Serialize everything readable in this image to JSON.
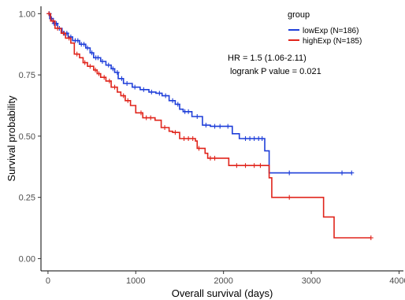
{
  "chart_data": {
    "type": "line",
    "xlabel": "Overall survival (days)",
    "ylabel": "Survival probability",
    "xlim": [
      -80,
      4050
    ],
    "ylim": [
      -0.05,
      1.03
    ],
    "x_ticks": [
      0,
      1000,
      2000,
      3000,
      4000
    ],
    "x_tick_labels": [
      "0",
      "1000",
      "2000",
      "3000",
      "4000"
    ],
    "y_ticks": [
      0,
      0.25,
      0.5,
      0.75,
      1
    ],
    "y_tick_labels": [
      "0.00",
      "0.25",
      "0.50",
      "0.75",
      "1.00"
    ],
    "grid": false,
    "legend": {
      "title": "group",
      "position": "top-right",
      "entries": [
        "lowExp (N=186)",
        "highExp  (N=185)"
      ]
    },
    "annotations": [
      "HR = 1.5 (1.06-2.11)",
      "logrank P value = 0.021"
    ],
    "series": [
      {
        "name": "lowExp (N=186)",
        "color": "#1f3fd9",
        "steps": [
          [
            0,
            1.0
          ],
          [
            20,
            0.98
          ],
          [
            60,
            0.96
          ],
          [
            110,
            0.94
          ],
          [
            160,
            0.92
          ],
          [
            230,
            0.905
          ],
          [
            280,
            0.89
          ],
          [
            360,
            0.875
          ],
          [
            430,
            0.86
          ],
          [
            480,
            0.84
          ],
          [
            520,
            0.82
          ],
          [
            600,
            0.805
          ],
          [
            660,
            0.79
          ],
          [
            720,
            0.775
          ],
          [
            760,
            0.76
          ],
          [
            800,
            0.735
          ],
          [
            860,
            0.715
          ],
          [
            960,
            0.7
          ],
          [
            1050,
            0.69
          ],
          [
            1150,
            0.68
          ],
          [
            1230,
            0.675
          ],
          [
            1300,
            0.665
          ],
          [
            1380,
            0.645
          ],
          [
            1450,
            0.63
          ],
          [
            1500,
            0.61
          ],
          [
            1540,
            0.6
          ],
          [
            1640,
            0.58
          ],
          [
            1760,
            0.545
          ],
          [
            1850,
            0.54
          ],
          [
            2100,
            0.51
          ],
          [
            2180,
            0.49
          ],
          [
            2460,
            0.49
          ],
          [
            2470,
            0.44
          ],
          [
            2520,
            0.35
          ],
          [
            3460,
            0.35
          ]
        ],
        "censor_x": [
          15,
          40,
          70,
          95,
          130,
          185,
          215,
          260,
          310,
          340,
          380,
          410,
          450,
          500,
          545,
          570,
          620,
          690,
          740,
          790,
          840,
          900,
          990,
          1090,
          1180,
          1270,
          1340,
          1420,
          1480,
          1560,
          1600,
          1700,
          1800,
          1900,
          1960,
          2050,
          2250,
          2300,
          2350,
          2400,
          2440,
          2750,
          3350,
          3460
        ]
      },
      {
        "name": "highExp  (N=185)",
        "color": "#e0241b",
        "steps": [
          [
            0,
            1.0
          ],
          [
            30,
            0.97
          ],
          [
            80,
            0.94
          ],
          [
            150,
            0.92
          ],
          [
            200,
            0.9
          ],
          [
            260,
            0.88
          ],
          [
            300,
            0.835
          ],
          [
            360,
            0.82
          ],
          [
            400,
            0.8
          ],
          [
            450,
            0.785
          ],
          [
            520,
            0.77
          ],
          [
            560,
            0.755
          ],
          [
            600,
            0.74
          ],
          [
            660,
            0.725
          ],
          [
            720,
            0.7
          ],
          [
            790,
            0.68
          ],
          [
            830,
            0.665
          ],
          [
            880,
            0.645
          ],
          [
            940,
            0.625
          ],
          [
            1000,
            0.595
          ],
          [
            1080,
            0.575
          ],
          [
            1220,
            0.565
          ],
          [
            1290,
            0.535
          ],
          [
            1380,
            0.52
          ],
          [
            1420,
            0.515
          ],
          [
            1500,
            0.49
          ],
          [
            1680,
            0.48
          ],
          [
            1700,
            0.45
          ],
          [
            1790,
            0.43
          ],
          [
            1820,
            0.41
          ],
          [
            2010,
            0.41
          ],
          [
            2060,
            0.38
          ],
          [
            2460,
            0.38
          ],
          [
            2520,
            0.33
          ],
          [
            2550,
            0.25
          ],
          [
            3120,
            0.25
          ],
          [
            3140,
            0.17
          ],
          [
            3260,
            0.085
          ],
          [
            3680,
            0.085
          ]
        ],
        "censor_x": [
          10,
          55,
          110,
          175,
          240,
          330,
          420,
          480,
          540,
          580,
          640,
          700,
          760,
          860,
          910,
          1060,
          1120,
          1170,
          1330,
          1450,
          1550,
          1600,
          1650,
          1720,
          1850,
          1900,
          2150,
          2250,
          2350,
          2420,
          2750,
          3680
        ]
      }
    ]
  }
}
